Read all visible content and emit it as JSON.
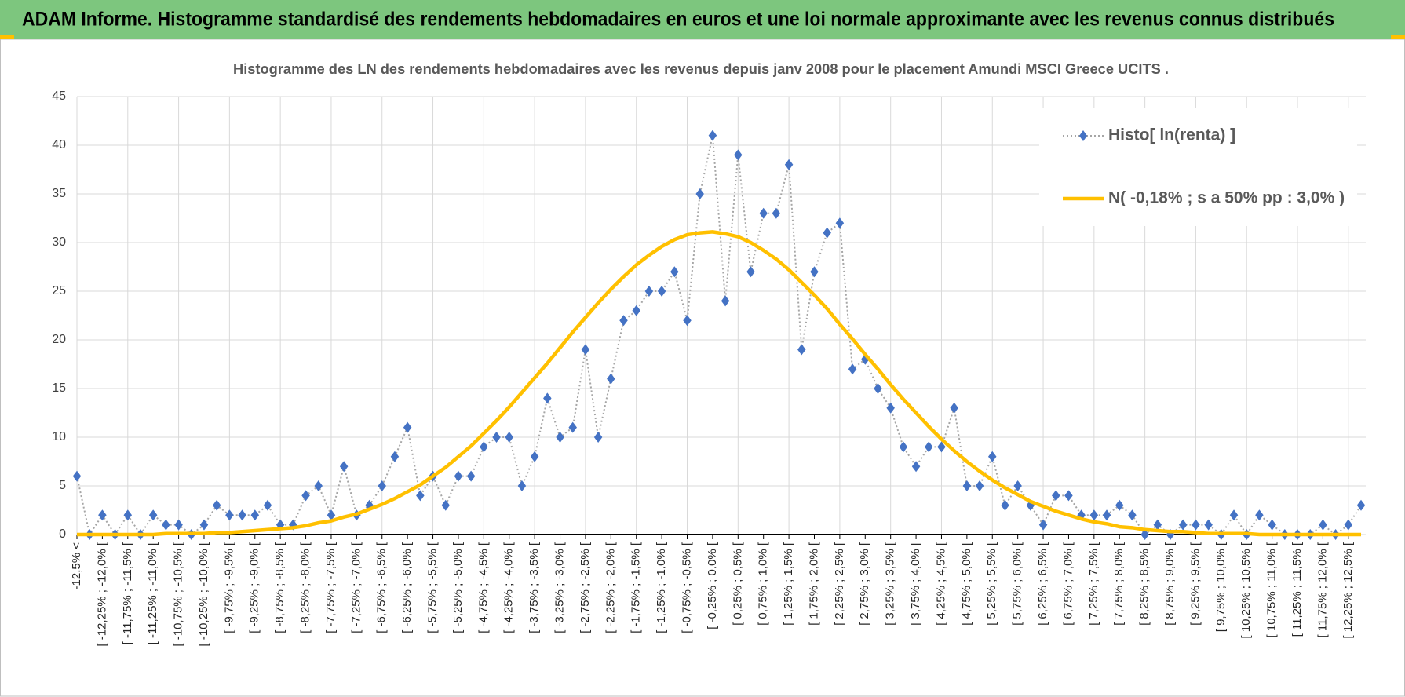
{
  "chart_data": {
    "type": "line",
    "title": "ADAM Informe. Histogramme standardisé des rendements hebdomadaires en euros et une loi normale approximante avec les revenus connus distribués",
    "subtitle": "Histogramme des LN des rendements hebdomadaires avec les revenus depuis janv 2008 pour le placement Amundi MSCI Greece UCITS .",
    "categories": [
      "-12,5% <",
      null,
      "[ -12,25% ; -12,0% [",
      null,
      "[ -11,75% ; -11,5% [",
      null,
      "[ -11,25% ; -11,0% [",
      null,
      "[ -10,75% ; -10,5% [",
      null,
      "[ -10,25% ; -10,0% [",
      null,
      "[ -9,75% ; -9,5% [",
      null,
      "[ -9,25% ; -9,0% [",
      null,
      "[ -8,75% ; -8,5% [",
      null,
      "[ -8,25% ; -8,0% [",
      null,
      "[ -7,75% ; -7,5% [",
      null,
      "[ -7,25% ; -7,0% [",
      null,
      "[ -6,75% ; -6,5% [",
      null,
      "[ -6,25% ; -6,0% [",
      null,
      "[ -5,75% ; -5,5% [",
      null,
      "[ -5,25% ; -5,0% [",
      null,
      "[ -4,75% ; -4,5% [",
      null,
      "[ -4,25% ; -4,0% [",
      null,
      "[ -3,75% ; -3,5% [",
      null,
      "[ -3,25% ; -3,0% [",
      null,
      "[ -2,75% ; -2,5% [",
      null,
      "[ -2,25% ; -2,0% [",
      null,
      "[ -1,75% ; -1,5% [",
      null,
      "[ -1,25% ; -1,0% [",
      null,
      "[ -0,75% ; -0,5% [",
      null,
      "[ -0,25% ; 0,0% [",
      null,
      "[ 0,25% ; 0,5% [",
      null,
      "[ 0,75% ; 1,0% [",
      null,
      "[ 1,25% ; 1,5% [",
      null,
      "[ 1,75% ; 2,0% [",
      null,
      "[ 2,25% ; 2,5% [",
      null,
      "[ 2,75% ; 3,0% [",
      null,
      "[ 3,25% ; 3,5% [",
      null,
      "[ 3,75% ; 4,0% [",
      null,
      "[ 4,25% ; 4,5% [",
      null,
      "[ 4,75% ; 5,0% [",
      null,
      "[ 5,25% ; 5,5% [",
      null,
      "[ 5,75% ; 6,0% [",
      null,
      "[ 6,25% ; 6,5% [",
      null,
      "[ 6,75% ; 7,0% [",
      null,
      "[ 7,25% ; 7,5% [",
      null,
      "[ 7,75% ; 8,0% [",
      null,
      "[ 8,25% ; 8,5% [",
      null,
      "[ 8,75% ; 9,0% [",
      null,
      "[ 9,25% ; 9,5% [",
      null,
      "[ 9,75% ; 10,0% [",
      null,
      "[ 10,25% ; 10,5% [",
      null,
      "[ 10,75% ; 11,0% [",
      null,
      "[ 11,25% ; 11,5% [",
      null,
      "[ 11,75% ; 12,0% [",
      null,
      "[ 12,25% ; 12,5% [",
      null
    ],
    "series": [
      {
        "name": "Histo[ ln(renta) ]",
        "color": "#4472c4",
        "marker": "diamond",
        "values": [
          6,
          0,
          2,
          0,
          2,
          0,
          2,
          1,
          1,
          0,
          1,
          3,
          2,
          2,
          2,
          3,
          1,
          1,
          4,
          5,
          2,
          7,
          2,
          3,
          5,
          8,
          11,
          4,
          6,
          3,
          6,
          6,
          9,
          10,
          10,
          5,
          8,
          14,
          10,
          11,
          19,
          10,
          16,
          22,
          23,
          25,
          25,
          27,
          22,
          35,
          41,
          24,
          39,
          27,
          33,
          33,
          38,
          19,
          27,
          31,
          32,
          17,
          18,
          15,
          13,
          9,
          7,
          9,
          9,
          13,
          5,
          5,
          8,
          3,
          5,
          3,
          1,
          4,
          4,
          2,
          2,
          2,
          3,
          2,
          0,
          1,
          0,
          1,
          1,
          1,
          0,
          2,
          0,
          2,
          1,
          0,
          0,
          0,
          1,
          0,
          1,
          3
        ]
      },
      {
        "name": "N( -0,18% ; s a 50% pp : 3,0% )",
        "color": "#ffc000",
        "values": [
          0,
          0,
          0,
          0,
          0,
          0,
          0,
          0.1,
          0.1,
          0.1,
          0.1,
          0.2,
          0.2,
          0.3,
          0.4,
          0.5,
          0.6,
          0.7,
          0.9,
          1.2,
          1.4,
          1.8,
          2.1,
          2.6,
          3.1,
          3.7,
          4.4,
          5.1,
          6.0,
          6.9,
          8.0,
          9.1,
          10.4,
          11.7,
          13.1,
          14.6,
          16.1,
          17.6,
          19.2,
          20.8,
          22.3,
          23.8,
          25.2,
          26.5,
          27.7,
          28.7,
          29.6,
          30.3,
          30.8,
          31.0,
          31.1,
          30.9,
          30.6,
          30.0,
          29.2,
          28.3,
          27.2,
          25.9,
          24.6,
          23.2,
          21.6,
          20.1,
          18.5,
          17.0,
          15.4,
          13.9,
          12.5,
          11.1,
          9.8,
          8.6,
          7.5,
          6.5,
          5.6,
          4.8,
          4.1,
          3.4,
          2.9,
          2.4,
          2.0,
          1.6,
          1.3,
          1.1,
          0.8,
          0.7,
          0.5,
          0.4,
          0.3,
          0.3,
          0.2,
          0.1,
          0.1,
          0.1,
          0.1,
          0,
          0,
          0,
          0,
          0,
          0,
          0,
          0,
          0
        ]
      }
    ],
    "ylim": [
      0,
      45
    ],
    "yticks": [
      0,
      5,
      10,
      15,
      20,
      25,
      30,
      35,
      40,
      45
    ],
    "grid": true,
    "legend": "top-right"
  }
}
